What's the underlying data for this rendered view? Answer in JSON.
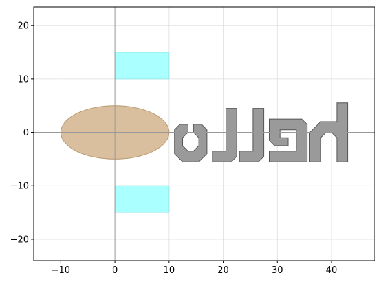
{
  "chart_data": {
    "type": "scatter",
    "title": "",
    "xlabel": "",
    "ylabel": "",
    "xlim": [
      -15,
      48
    ],
    "ylim": [
      -24,
      23.5
    ],
    "grid": true,
    "x_ticks": [
      -10,
      0,
      10,
      20,
      30,
      40
    ],
    "y_ticks": [
      -20,
      -10,
      0,
      10,
      20
    ],
    "x_tick_labels": [
      "−10",
      "0",
      "10",
      "20",
      "30",
      "40"
    ],
    "y_tick_labels": [
      "−20",
      "−10",
      "0",
      "10",
      "20"
    ],
    "colors": {
      "ellipse_fill": "#d2b48c",
      "ellipse_stroke": "#b89a70",
      "rect_fill": "#aaffff",
      "rect_stroke": "#99e6e6",
      "glyph_fill": "#9a9a9a",
      "glyph_stroke": "#555555",
      "axis_line": "#999999",
      "grid": "#dddddd"
    },
    "shapes": {
      "ellipse": {
        "cx": 0,
        "cy": 0,
        "rx": 10,
        "ry": 5
      },
      "rectangles": [
        {
          "x0": 0,
          "x1": 10,
          "y0": 10,
          "y1": 15
        },
        {
          "x0": 0,
          "x1": 10,
          "y0": -15,
          "y1": -10
        }
      ],
      "glyphs": [
        [
          [
            12,
            1.5
          ],
          [
            13.5,
            1.5
          ],
          [
            13.5,
            0
          ],
          [
            12.5,
            -1
          ],
          [
            12.5,
            -2.5
          ],
          [
            13.5,
            -3.5
          ],
          [
            14.5,
            -3.5
          ],
          [
            15.5,
            -2.5
          ],
          [
            15.5,
            -1
          ],
          [
            14.5,
            0
          ],
          [
            14.5,
            1.5
          ],
          [
            16,
            1.5
          ],
          [
            17,
            0.5
          ],
          [
            17,
            -4
          ],
          [
            15.5,
            -5.5
          ],
          [
            12.5,
            -5.5
          ],
          [
            11,
            -4
          ],
          [
            11,
            0.5
          ]
        ],
        [
          [
            20.5,
            4.5
          ],
          [
            22.5,
            4.5
          ],
          [
            22.5,
            -4.5
          ],
          [
            21.5,
            -5.5
          ],
          [
            18,
            -5.5
          ],
          [
            18,
            -3.5
          ],
          [
            20.5,
            -3.5
          ]
        ],
        [
          [
            25.5,
            4.5
          ],
          [
            27.5,
            4.5
          ],
          [
            27.5,
            -4.5
          ],
          [
            26.5,
            -5.5
          ],
          [
            23,
            -5.5
          ],
          [
            23,
            -3.5
          ],
          [
            25.5,
            -3.5
          ]
        ],
        [
          [
            28.5,
            2.5
          ],
          [
            34.5,
            2.5
          ],
          [
            35.5,
            1.5
          ],
          [
            35.5,
            -5.5
          ],
          [
            28.5,
            -5.5
          ],
          [
            28.5,
            -3.5
          ],
          [
            33.5,
            -3.5
          ],
          [
            33.5,
            0.5
          ],
          [
            30.5,
            0.5
          ],
          [
            30.5,
            -1
          ],
          [
            32,
            -1
          ],
          [
            32,
            -2.5
          ],
          [
            29.5,
            -2.5
          ],
          [
            28.5,
            -1.5
          ]
        ],
        [
          [
            41,
            5.5
          ],
          [
            43,
            5.5
          ],
          [
            43,
            -5.5
          ],
          [
            41,
            -5.5
          ],
          [
            41,
            -1
          ],
          [
            40,
            0
          ],
          [
            39,
            0
          ],
          [
            38,
            -1
          ],
          [
            38,
            -5.5
          ],
          [
            36,
            -5.5
          ],
          [
            36,
            0
          ],
          [
            38,
            2
          ],
          [
            41,
            2
          ]
        ]
      ]
    }
  }
}
